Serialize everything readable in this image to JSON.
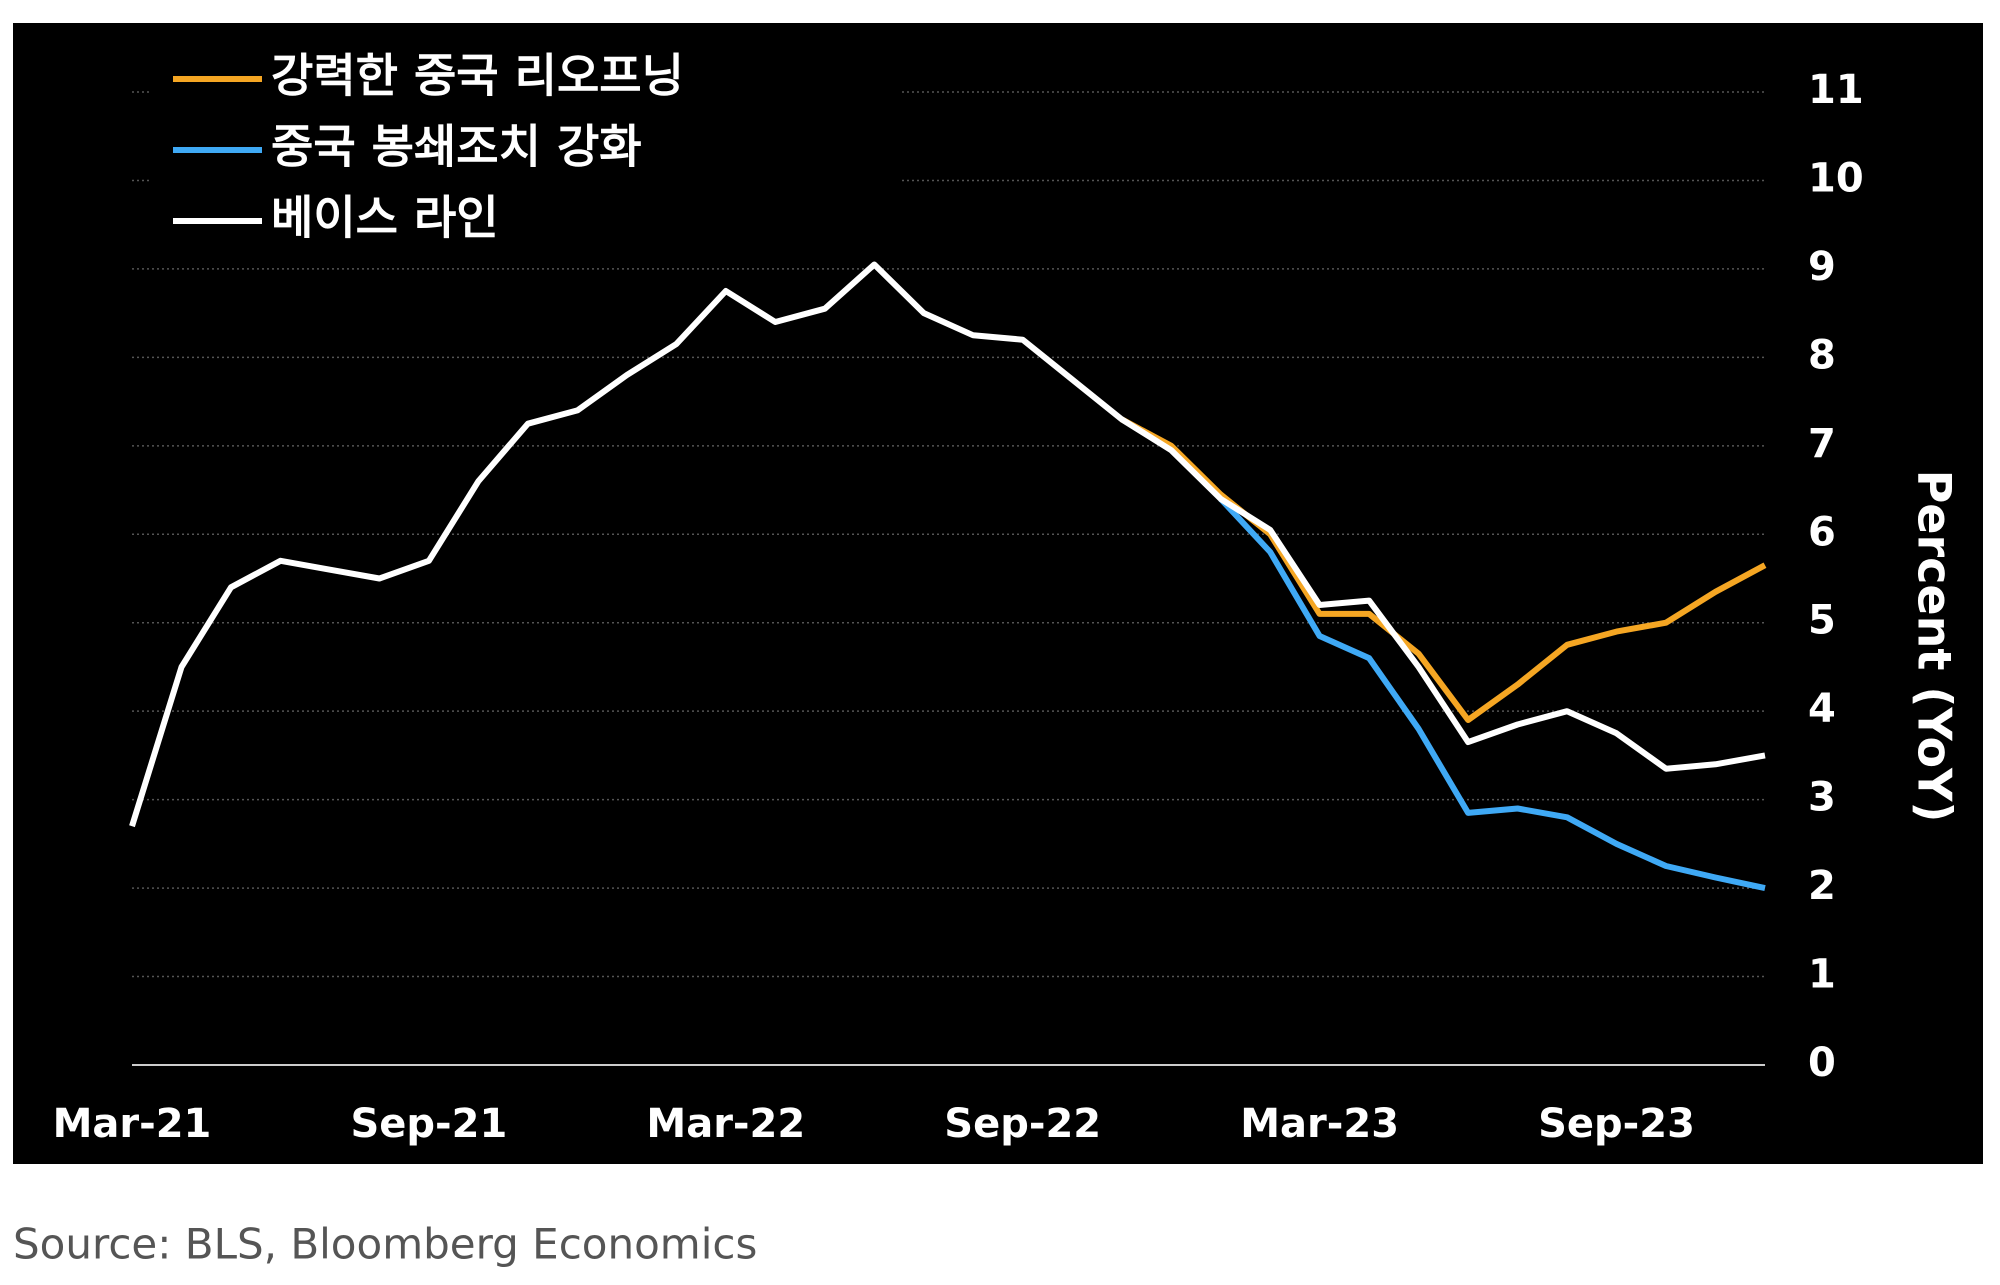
{
  "chart_data": {
    "type": "line",
    "categories": [
      "Mar-21",
      null,
      null,
      null,
      null,
      null,
      "Sep-21",
      null,
      null,
      null,
      null,
      null,
      "Mar-22",
      null,
      null,
      null,
      null,
      null,
      "Sep-22",
      null,
      null,
      null,
      null,
      null,
      "Mar-23",
      null,
      null,
      null,
      null,
      null,
      "Sep-23",
      null,
      null,
      null
    ],
    "series": [
      {
        "name": "강력한 중국 리오프닝",
        "color": "#f5a623",
        "values": [
          null,
          null,
          null,
          null,
          null,
          null,
          null,
          null,
          null,
          null,
          null,
          null,
          null,
          null,
          null,
          null,
          null,
          null,
          null,
          null,
          7.3,
          7.0,
          6.45,
          6.0,
          5.1,
          5.1,
          4.65,
          3.9,
          4.3,
          4.75,
          4.9,
          5.0,
          5.35,
          5.65
        ]
      },
      {
        "name": "중국 봉쇄조치 강화",
        "color": "#3fa9f5",
        "values": [
          null,
          null,
          null,
          null,
          null,
          null,
          null,
          null,
          null,
          null,
          null,
          null,
          null,
          null,
          null,
          null,
          null,
          null,
          null,
          null,
          null,
          null,
          6.4,
          5.8,
          4.85,
          4.6,
          3.8,
          2.85,
          2.9,
          2.8,
          2.5,
          2.25,
          2.12,
          2.0
        ]
      },
      {
        "name": "베이스 라인",
        "color": "#ffffff",
        "values": [
          2.7,
          4.5,
          5.4,
          5.7,
          5.6,
          5.5,
          5.7,
          6.6,
          7.25,
          7.4,
          7.8,
          8.15,
          8.75,
          8.4,
          8.55,
          9.05,
          8.5,
          8.25,
          8.2,
          7.75,
          7.3,
          6.95,
          6.4,
          6.05,
          5.2,
          5.25,
          4.5,
          3.65,
          3.85,
          4.0,
          3.75,
          3.35,
          3.4,
          3.5
        ]
      }
    ],
    "y_label": "Percent (YoY)",
    "ylim": [
      0,
      11
    ],
    "yticks": [
      0,
      1,
      2,
      3,
      4,
      5,
      6,
      7,
      8,
      9,
      10,
      11
    ],
    "grid": true,
    "legend": "upper left",
    "source": "Source: BLS, Bloomberg Economics"
  }
}
